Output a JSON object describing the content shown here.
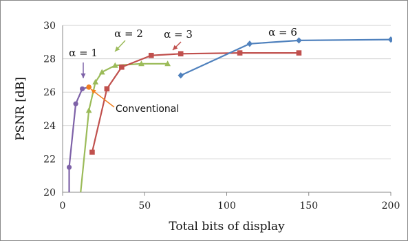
{
  "chart_data": {
    "type": "line",
    "title": "",
    "xlabel": "Total bits of display",
    "ylabel": "PSNR [dB]",
    "xlim": [
      0,
      200
    ],
    "ylim": [
      20,
      30
    ],
    "x_ticks": [
      "0",
      "50",
      "100",
      "150",
      "200"
    ],
    "y_ticks": [
      "20",
      "22",
      "24",
      "26",
      "28",
      "30"
    ],
    "grid": "horizontal",
    "legend": "none",
    "series": [
      {
        "name": "α = 1",
        "color": "#7e62a8",
        "marker": "circle",
        "points": [
          [
            4,
            20.0
          ],
          [
            4,
            21.5
          ],
          [
            8,
            25.3
          ],
          [
            12,
            26.2
          ],
          [
            16,
            26.3
          ]
        ]
      },
      {
        "name": "α = 2",
        "color": "#9bbb59",
        "marker": "triangle",
        "points": [
          [
            11,
            20.0
          ],
          [
            16,
            24.9
          ],
          [
            20,
            26.6
          ],
          [
            24,
            27.2
          ],
          [
            32,
            27.6
          ],
          [
            48,
            27.7
          ],
          [
            64,
            27.7
          ]
        ]
      },
      {
        "name": "α = 3",
        "color": "#c0504d",
        "marker": "square",
        "points": [
          [
            18,
            22.4
          ],
          [
            27,
            26.2
          ],
          [
            36,
            27.5
          ],
          [
            54,
            28.2
          ],
          [
            72,
            28.3
          ],
          [
            108,
            28.35
          ],
          [
            144,
            28.35
          ]
        ]
      },
      {
        "name": "α = 6",
        "color": "#4f81bd",
        "marker": "diamond",
        "points": [
          [
            72,
            27.0
          ],
          [
            114,
            28.9
          ],
          [
            144,
            29.1
          ],
          [
            200,
            29.15
          ]
        ]
      }
    ],
    "conventional": {
      "label": "Conventional",
      "color": "#f07f1f",
      "point": [
        16,
        26.3
      ]
    },
    "annotations": [
      {
        "text": "α = 1",
        "series": "α = 1"
      },
      {
        "text": "α = 2",
        "series": "α = 2"
      },
      {
        "text": "α = 3",
        "series": "α = 3"
      },
      {
        "text": "α = 6",
        "series": "α = 6"
      }
    ]
  }
}
